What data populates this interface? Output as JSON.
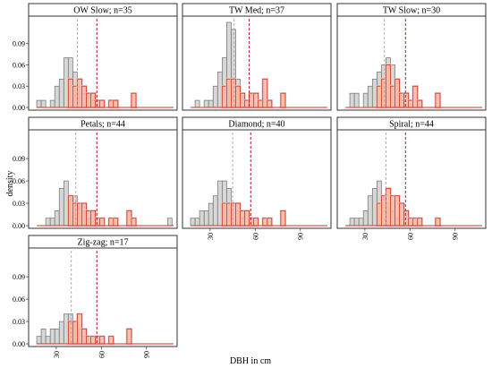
{
  "figure": {
    "ylabel": "density",
    "xlabel": "DBH in cm"
  },
  "colors": {
    "grey_fill": "#d0d0d0",
    "grey_stroke": "#707070",
    "orange_fill": "#f9b39a",
    "orange_stroke": "#c8351a",
    "pink_stroke": "#f9c0c0",
    "grey_dashed": "#a0a0a0",
    "red_dashed": "#b2182b",
    "strip_fill": "#ffffff",
    "panel_border": "#333333"
  },
  "chart_data": {
    "type": "bar",
    "subtype": "faceted-overlaid-histograms",
    "xlabel": "DBH in cm",
    "ylabel": "density",
    "xlim": [
      14,
      108
    ],
    "ylim": [
      0,
      0.125
    ],
    "xticks": [
      "30",
      "60",
      "90"
    ],
    "xtick_values": [
      30,
      60,
      90
    ],
    "yticks": [
      "0.00",
      "0.03",
      "0.06",
      "0.09"
    ],
    "ytick_values": [
      0,
      0.03,
      0.06,
      0.09
    ],
    "bin_starts": [
      17,
      20,
      23,
      26,
      29,
      32,
      35,
      38,
      41,
      44,
      47,
      50,
      53,
      56,
      59,
      62,
      65,
      68,
      71,
      74,
      77,
      80,
      83,
      86,
      89,
      92,
      95,
      98,
      101,
      104
    ],
    "bin_width": 3,
    "series_roles": [
      "grey",
      "orange"
    ],
    "panels": [
      {
        "title": "OW Slow; n=35",
        "grey": [
          0.01,
          0.01,
          0,
          0.01,
          0.03,
          0.04,
          0.07,
          0.07,
          0.05,
          0.03,
          0.02,
          0.02,
          0.01,
          0,
          0,
          0,
          0,
          0,
          0,
          0,
          0,
          0,
          0,
          0,
          0,
          0,
          0,
          0,
          0,
          0
        ],
        "orange": [
          0,
          0,
          0,
          0,
          0,
          0,
          0,
          0.04,
          0.03,
          0.04,
          0.03,
          0.02,
          0.02,
          0.01,
          0.01,
          0,
          0.01,
          0.01,
          0,
          0,
          0,
          0.02,
          0,
          0,
          0,
          0,
          0,
          0,
          0,
          0
        ],
        "grey_mean": 44,
        "orange_mean": 57
      },
      {
        "title": "TW Med; n=37",
        "grey": [
          0,
          0.01,
          0,
          0.01,
          0.01,
          0.03,
          0.05,
          0.07,
          0.12,
          0.11,
          0.04,
          0.02,
          0,
          0,
          0,
          0,
          0,
          0,
          0,
          0,
          0,
          0,
          0,
          0,
          0,
          0,
          0,
          0,
          0,
          0
        ],
        "orange": [
          0,
          0,
          0,
          0,
          0,
          0,
          0,
          0.03,
          0.04,
          0.04,
          0.03,
          0.02,
          0.01,
          0.02,
          0.02,
          0.01,
          0.04,
          0.01,
          0,
          0,
          0.02,
          0,
          0,
          0,
          0,
          0,
          0,
          0,
          0,
          0
        ],
        "grey_mean": 46,
        "orange_mean": 56
      },
      {
        "title": "TW Slow; n=30",
        "grey": [
          0,
          0.02,
          0.02,
          0,
          0.02,
          0.03,
          0.04,
          0.05,
          0.06,
          0.07,
          0.06,
          0.04,
          0.01,
          0,
          0,
          0,
          0,
          0,
          0,
          0,
          0,
          0,
          0,
          0,
          0,
          0,
          0,
          0,
          0,
          0
        ],
        "orange": [
          0,
          0,
          0,
          0,
          0,
          0,
          0,
          0.03,
          0.04,
          0.06,
          0.03,
          0.04,
          0.02,
          0.02,
          0.01,
          0.03,
          0.01,
          0,
          0,
          0,
          0.02,
          0,
          0,
          0,
          0,
          0,
          0,
          0,
          0,
          0
        ],
        "grey_mean": 43,
        "orange_mean": 57
      },
      {
        "title": "Petals; n=44",
        "grey": [
          0,
          0,
          0.01,
          0.01,
          0.02,
          0.05,
          0.06,
          0.04,
          0.04,
          0.03,
          0.02,
          0.01,
          0,
          0,
          0,
          0,
          0,
          0,
          0,
          0,
          0,
          0,
          0,
          0,
          0,
          0,
          0,
          0,
          0,
          0.01
        ],
        "orange": [
          0,
          0,
          0,
          0,
          0,
          0,
          0,
          0.04,
          0.03,
          0.03,
          0.03,
          0.02,
          0.02,
          0.01,
          0.01,
          0,
          0.01,
          0.01,
          0,
          0,
          0.02,
          0.01,
          0,
          0,
          0,
          0,
          0,
          0,
          0,
          0
        ],
        "grey_mean": 43,
        "orange_mean": 57
      },
      {
        "title": "Diamond; n=40",
        "grey": [
          0.01,
          0.01,
          0.02,
          0.02,
          0.03,
          0.04,
          0.06,
          0.06,
          0.05,
          0.03,
          0.02,
          0.01,
          0,
          0,
          0,
          0,
          0,
          0,
          0,
          0,
          0,
          0,
          0,
          0,
          0,
          0,
          0,
          0,
          0,
          0
        ],
        "orange": [
          0,
          0,
          0,
          0,
          0,
          0,
          0,
          0.03,
          0.03,
          0.03,
          0.03,
          0.02,
          0.02,
          0.01,
          0.01,
          0,
          0.01,
          0.01,
          0,
          0,
          0.02,
          0,
          0,
          0,
          0,
          0,
          0,
          0,
          0,
          0
        ],
        "grey_mean": 45,
        "orange_mean": 57
      },
      {
        "title": "Spiral; n=44",
        "grey": [
          0,
          0.01,
          0.01,
          0.01,
          0.02,
          0.04,
          0.05,
          0.06,
          0.04,
          0.03,
          0.02,
          0.01,
          0,
          0,
          0,
          0,
          0,
          0,
          0,
          0,
          0,
          0,
          0,
          0,
          0,
          0,
          0,
          0,
          0,
          0
        ],
        "orange": [
          0,
          0,
          0,
          0,
          0,
          0,
          0,
          0.03,
          0.04,
          0.05,
          0.04,
          0.04,
          0.03,
          0.02,
          0.01,
          0.01,
          0.01,
          0,
          0,
          0,
          0.01,
          0,
          0,
          0,
          0,
          0,
          0,
          0,
          0,
          0
        ],
        "grey_mean": 44,
        "orange_mean": 57
      },
      {
        "title": "Zig-zag; n=17",
        "grey": [
          0.01,
          0.02,
          0.01,
          0.02,
          0.02,
          0.03,
          0.04,
          0.04,
          0.03,
          0.02,
          0.01,
          0.01,
          0,
          0,
          0,
          0,
          0,
          0,
          0,
          0,
          0,
          0,
          0,
          0,
          0,
          0,
          0,
          0,
          0,
          0
        ],
        "orange": [
          0,
          0,
          0,
          0,
          0,
          0,
          0,
          0.03,
          0.03,
          0.04,
          0.02,
          0.01,
          0.01,
          0.01,
          0.01,
          0,
          0.01,
          0,
          0,
          0,
          0.02,
          0,
          0,
          0,
          0,
          0,
          0,
          0,
          0,
          0
        ],
        "grey_mean": 40,
        "orange_mean": 57
      }
    ]
  }
}
